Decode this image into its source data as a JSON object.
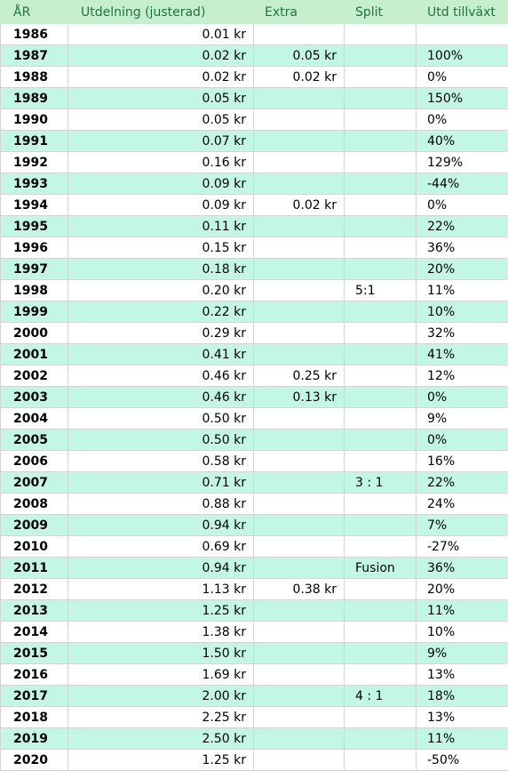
{
  "headers": {
    "year": "ÅR",
    "dividend": "Utdelning (justerad)",
    "extra": "Extra",
    "split": "Split",
    "growth": "Utd tillväxt"
  },
  "rows": [
    {
      "year": "1986",
      "dividend": "0.01 kr",
      "extra": "",
      "split": "",
      "growth": ""
    },
    {
      "year": "1987",
      "dividend": "0.02 kr",
      "extra": "0.05 kr",
      "split": "",
      "growth": "100%"
    },
    {
      "year": "1988",
      "dividend": "0.02 kr",
      "extra": "0.02 kr",
      "split": "",
      "growth": "0%"
    },
    {
      "year": "1989",
      "dividend": "0.05 kr",
      "extra": "",
      "split": "",
      "growth": "150%"
    },
    {
      "year": "1990",
      "dividend": "0.05 kr",
      "extra": "",
      "split": "",
      "growth": "0%"
    },
    {
      "year": "1991",
      "dividend": "0.07 kr",
      "extra": "",
      "split": "",
      "growth": "40%"
    },
    {
      "year": "1992",
      "dividend": "0.16 kr",
      "extra": "",
      "split": "",
      "growth": "129%"
    },
    {
      "year": "1993",
      "dividend": "0.09 kr",
      "extra": "",
      "split": "",
      "growth": "-44%"
    },
    {
      "year": "1994",
      "dividend": "0.09 kr",
      "extra": "0.02 kr",
      "split": "",
      "growth": "0%"
    },
    {
      "year": "1995",
      "dividend": "0.11 kr",
      "extra": "",
      "split": "",
      "growth": "22%"
    },
    {
      "year": "1996",
      "dividend": "0.15 kr",
      "extra": "",
      "split": "",
      "growth": "36%"
    },
    {
      "year": "1997",
      "dividend": "0.18 kr",
      "extra": "",
      "split": "",
      "growth": "20%"
    },
    {
      "year": "1998",
      "dividend": "0.20 kr",
      "extra": "",
      "split": "5:1",
      "growth": "11%"
    },
    {
      "year": "1999",
      "dividend": "0.22 kr",
      "extra": "",
      "split": "",
      "growth": "10%"
    },
    {
      "year": "2000",
      "dividend": "0.29 kr",
      "extra": "",
      "split": "",
      "growth": "32%"
    },
    {
      "year": "2001",
      "dividend": "0.41 kr",
      "extra": "",
      "split": "",
      "growth": "41%"
    },
    {
      "year": "2002",
      "dividend": "0.46 kr",
      "extra": "0.25 kr",
      "split": "",
      "growth": "12%"
    },
    {
      "year": "2003",
      "dividend": "0.46 kr",
      "extra": "0.13 kr",
      "split": "",
      "growth": "0%"
    },
    {
      "year": "2004",
      "dividend": "0.50 kr",
      "extra": "",
      "split": "",
      "growth": "9%"
    },
    {
      "year": "2005",
      "dividend": "0.50 kr",
      "extra": "",
      "split": "",
      "growth": "0%"
    },
    {
      "year": "2006",
      "dividend": "0.58 kr",
      "extra": "",
      "split": "",
      "growth": "16%"
    },
    {
      "year": "2007",
      "dividend": "0.71 kr",
      "extra": "",
      "split": "3 : 1",
      "growth": "22%"
    },
    {
      "year": "2008",
      "dividend": "0.88 kr",
      "extra": "",
      "split": "",
      "growth": "24%"
    },
    {
      "year": "2009",
      "dividend": "0.94 kr",
      "extra": "",
      "split": "",
      "growth": "7%"
    },
    {
      "year": "2010",
      "dividend": "0.69 kr",
      "extra": "",
      "split": "",
      "growth": "-27%"
    },
    {
      "year": "2011",
      "dividend": "0.94 kr",
      "extra": "",
      "split": "Fusion",
      "growth": "36%"
    },
    {
      "year": "2012",
      "dividend": "1.13 kr",
      "extra": "0.38 kr",
      "split": "",
      "growth": "20%"
    },
    {
      "year": "2013",
      "dividend": "1.25 kr",
      "extra": "",
      "split": "",
      "growth": "11%"
    },
    {
      "year": "2014",
      "dividend": "1.38 kr",
      "extra": "",
      "split": "",
      "growth": "10%"
    },
    {
      "year": "2015",
      "dividend": "1.50 kr",
      "extra": "",
      "split": "",
      "growth": "9%"
    },
    {
      "year": "2016",
      "dividend": "1.69 kr",
      "extra": "",
      "split": "",
      "growth": "13%"
    },
    {
      "year": "2017",
      "dividend": "2.00 kr",
      "extra": "",
      "split": "4 : 1",
      "growth": "18%"
    },
    {
      "year": "2018",
      "dividend": "2.25 kr",
      "extra": "",
      "split": "",
      "growth": "13%"
    },
    {
      "year": "2019",
      "dividend": "2.50 kr",
      "extra": "",
      "split": "",
      "growth": "11%"
    },
    {
      "year": "2020",
      "dividend": "1.25 kr",
      "extra": "",
      "split": "",
      "growth": "-50%"
    }
  ],
  "colors": {
    "header_bg": "#c6efce",
    "header_text": "#217346",
    "band_bg": "#c3f7e5",
    "grid": "#d4d4d4"
  }
}
